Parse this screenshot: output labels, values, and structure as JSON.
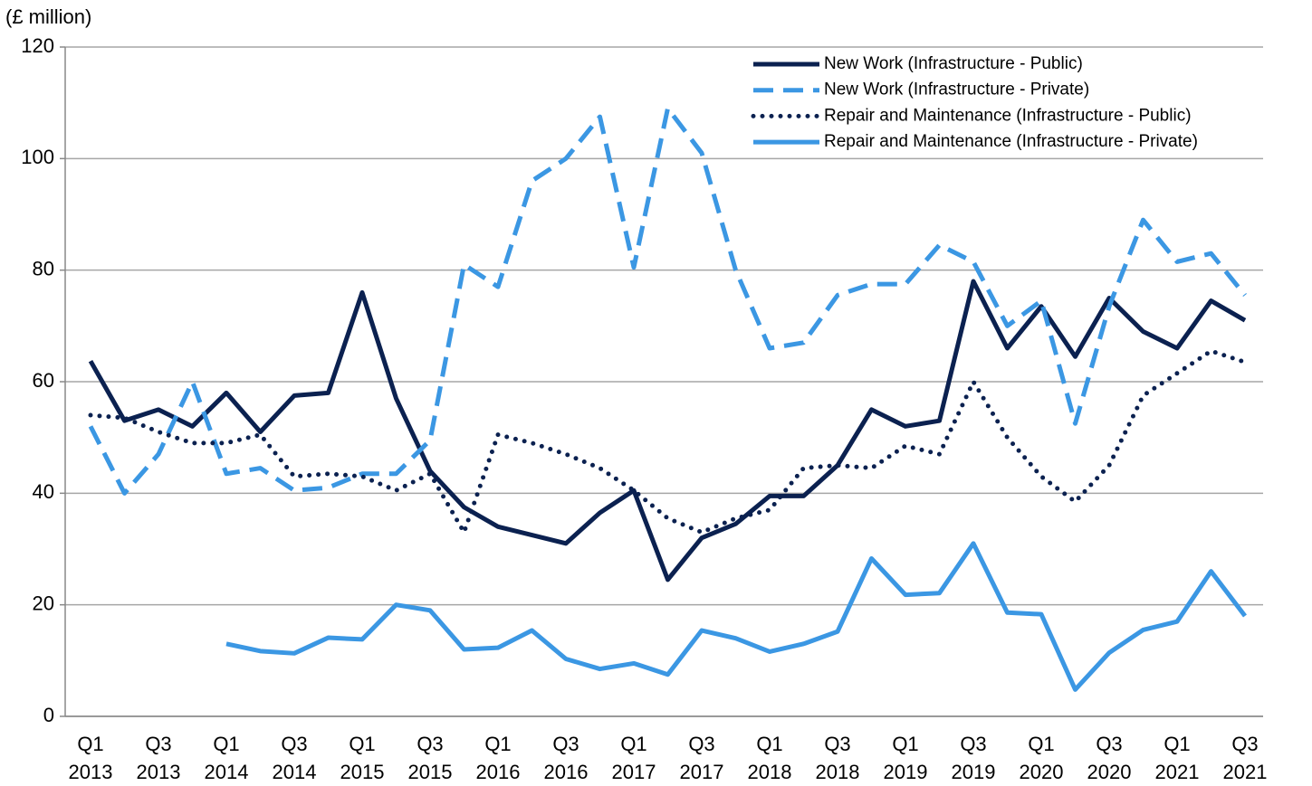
{
  "chart_data": {
    "type": "line",
    "y_axis_label": "(£ million)",
    "categories": [
      "Q1 2013",
      null,
      "Q3 2013",
      null,
      "Q1 2014",
      null,
      "Q3 2014",
      null,
      "Q1 2015",
      null,
      "Q3 2015",
      null,
      "Q1 2016",
      null,
      "Q3 2016",
      null,
      "Q1 2017",
      null,
      "Q3 2017",
      null,
      "Q1 2018",
      null,
      "Q3 2018",
      null,
      "Q1 2019",
      null,
      "Q3 2019",
      null,
      "Q1 2020",
      null,
      "Q3 2020",
      null,
      "Q1 2021",
      null,
      "Q3 2021"
    ],
    "series": [
      {
        "name": "New Work (Infrastructure - Public)",
        "color": "#0b2150",
        "style": "solid",
        "values": [
          63.7,
          53,
          55,
          52,
          58,
          51,
          57.5,
          58,
          76,
          57,
          44,
          37.5,
          34,
          32.5,
          31,
          36.5,
          40.5,
          24.5,
          32,
          34.5,
          39.5,
          39.5,
          45,
          55,
          52,
          53,
          78,
          66,
          73.5,
          64.5,
          75,
          69,
          66,
          74.5,
          71
        ]
      },
      {
        "name": "New Work (Infrastructure - Private)",
        "color": "#3b97e3",
        "style": "dashed",
        "values": [
          52,
          40,
          47,
          60,
          43.5,
          44.5,
          40.5,
          41,
          43.5,
          43.5,
          49.5,
          81,
          77,
          96,
          100,
          107.5,
          80.5,
          109,
          101,
          80,
          66,
          67,
          75.5,
          77.5,
          77.5,
          84.5,
          81.5,
          70,
          74.5,
          52.5,
          73.5,
          89,
          81.5,
          83,
          75.5
        ]
      },
      {
        "name": "Repair and Maintenance (Infrastructure - Public)",
        "color": "#0b2150",
        "style": "dotted",
        "values": [
          54,
          53.5,
          51,
          49,
          49,
          50.5,
          43,
          43.5,
          43,
          40.5,
          43.5,
          33,
          50.5,
          49,
          47,
          44.5,
          40.5,
          35.5,
          33,
          35.5,
          37,
          44.5,
          45,
          44.5,
          48.5,
          47,
          60,
          50,
          43,
          38.5,
          45,
          57.5,
          61.5,
          65.5,
          63.5
        ]
      },
      {
        "name": "Repair and Maintenance (Infrastructure - Private)",
        "color": "#3b97e3",
        "style": "solid",
        "values": [
          null,
          null,
          null,
          null,
          13,
          11.7,
          11.3,
          14.1,
          13.8,
          20,
          19,
          12,
          12.3,
          15.4,
          10.3,
          8.5,
          9.5,
          7.5,
          15.4,
          14,
          11.6,
          13,
          15.2,
          28.3,
          21.8,
          22.1,
          31,
          18.6,
          18.3,
          4.8,
          11.4,
          15.5,
          17,
          26,
          18
        ]
      }
    ],
    "ylim": [
      0,
      120
    ],
    "yticks": [
      0,
      20,
      40,
      60,
      80,
      100,
      120
    ],
    "grid": true,
    "legend": "upper right"
  }
}
